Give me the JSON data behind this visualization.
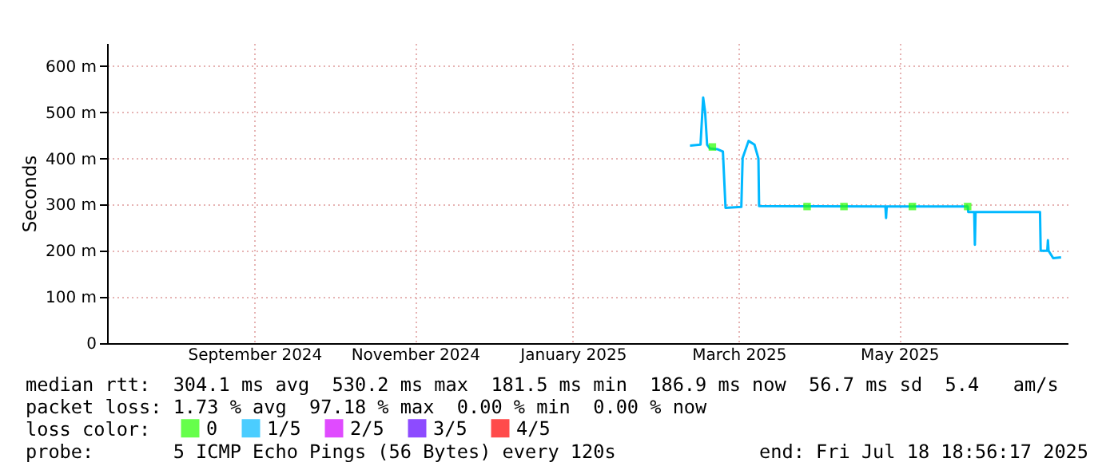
{
  "chart_data": {
    "type": "line",
    "ylabel": "Seconds",
    "legend_title": "loss color:",
    "legend": "bottom left",
    "grid": true,
    "xlim": [
      "2024-07-18",
      "2025-07-18"
    ],
    "xticks": [
      {
        "value": "2024-09-12",
        "label": "September 2024"
      },
      {
        "value": "2024-11-12",
        "label": "November 2024"
      },
      {
        "value": "2025-01-11",
        "label": "January 2025"
      },
      {
        "value": "2025-03-15",
        "label": "March 2025"
      },
      {
        "value": "2025-05-15",
        "label": "May 2025"
      }
    ],
    "ylim": [
      0,
      650
    ],
    "yticks": [
      0,
      {
        "value": 100,
        "label": "100 m"
      },
      {
        "value": 200,
        "label": "200 m"
      },
      {
        "value": 300,
        "label": "300 m"
      },
      {
        "value": 400,
        "label": "400 m"
      },
      {
        "value": 500,
        "label": "500 m"
      },
      {
        "value": 600,
        "label": "600 m"
      }
    ],
    "x": [
      "2025-02-24T12:00",
      "2025-02-28T12:00",
      "2025-03-01T12:00",
      "2025-03-02T06:00",
      "2025-03-03",
      "2025-03-04",
      "2025-03-07",
      "2025-03-09",
      "2025-03-10",
      "2025-03-16",
      "2025-03-16T12:00",
      "2025-03-18T18:00",
      "2025-03-21",
      "2025-03-22T12:00",
      "2025-03-22T18:00",
      "2025-05-09T18:00",
      "2025-05-10",
      "2025-05-10T06:00",
      "2025-06-10",
      "2025-06-10T06:00",
      "2025-06-12T12:00",
      "2025-06-12T18:00",
      "2025-06-13",
      "2025-07-07T12:00",
      "2025-07-07T18:00",
      "2025-07-10T06:00",
      "2025-07-10T12:00",
      "2025-07-10T18:00",
      "2025-07-12T12:00",
      "2025-07-15T12:00"
    ],
    "series": [
      {
        "name": "0",
        "type": "scatter",
        "color": "#26ff00",
        "x": [
          "2025-03-05",
          "2025-04-10",
          "2025-04-24",
          "2025-05-20",
          "2025-06-10"
        ],
        "values": [
          425,
          296,
          296,
          296,
          296
        ]
      },
      {
        "name": "1/5",
        "color": "#00b8ff",
        "values": [
          428,
          430,
          532,
          500,
          430,
          422,
          420,
          415,
          293,
          295,
          401,
          438,
          430,
          400,
          297,
          296,
          271,
          296,
          296,
          284,
          284,
          213,
          284,
          284,
          200,
          200,
          223,
          200,
          184,
          186
        ]
      },
      {
        "name": "2/5",
        "color": "#d300ff",
        "values": [
          null,
          null,
          null,
          null,
          null,
          null,
          null,
          null,
          null,
          null,
          null,
          null,
          null,
          null,
          null,
          null,
          null,
          null,
          null,
          null,
          null,
          null,
          null,
          null,
          null,
          null,
          null,
          null,
          null,
          null
        ]
      },
      {
        "name": "3/5",
        "color": "#5e00ff",
        "values": [
          null,
          null,
          null,
          null,
          null,
          null,
          null,
          null,
          null,
          null,
          null,
          null,
          null,
          null,
          null,
          null,
          null,
          null,
          null,
          null,
          null,
          null,
          null,
          null,
          null,
          null,
          null,
          null,
          null,
          null
        ]
      },
      {
        "name": "4/5",
        "color": "#ff0000",
        "values": [
          null,
          null,
          null,
          null,
          null,
          null,
          null,
          null,
          null,
          null,
          null,
          null,
          null,
          null,
          null,
          null,
          null,
          null,
          null,
          null,
          null,
          null,
          null,
          null,
          null,
          null,
          null,
          null,
          null,
          null
        ]
      }
    ],
    "annotations": [
      "median rtt:  304.1 ms avg  530.2 ms max  181.5 ms min  186.9 ms now  56.7 ms sd  5.4   am/s",
      "packet loss: 1.73 % avg  97.18 % max  0.00 % min  0.00 % now",
      "probe:       5 ICMP Echo Pings (56 Bytes) every 120s",
      "end: Fri Jul 18 18:56:17 2025"
    ]
  }
}
